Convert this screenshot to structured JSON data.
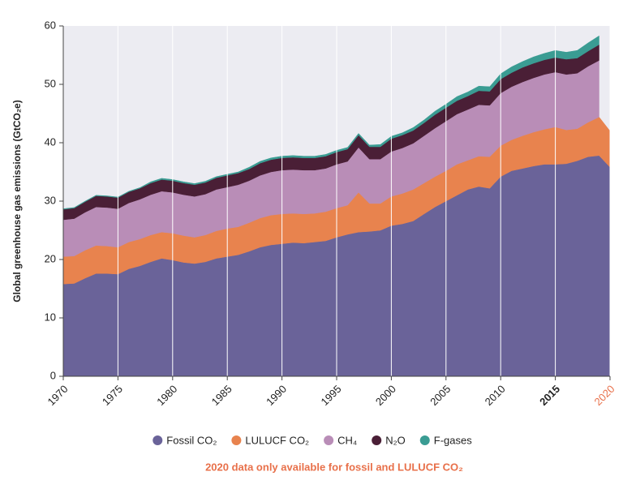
{
  "chart_data": {
    "type": "stacked_area",
    "y_label": "Global greenhouse gas emissions (GtCO₂e)",
    "annotation": "2020 data only available for fossil and LULUCF CO₂",
    "annotation_color": "#e8704a",
    "x": [
      1970,
      1971,
      1972,
      1973,
      1974,
      1975,
      1976,
      1977,
      1978,
      1979,
      1980,
      1981,
      1982,
      1983,
      1984,
      1985,
      1986,
      1987,
      1988,
      1989,
      1990,
      1991,
      1992,
      1993,
      1994,
      1995,
      1996,
      1997,
      1998,
      1999,
      2000,
      2001,
      2002,
      2003,
      2004,
      2005,
      2006,
      2007,
      2008,
      2009,
      2010,
      2011,
      2012,
      2013,
      2014,
      2015,
      2016,
      2017,
      2018,
      2019,
      2020
    ],
    "xlim": [
      1970,
      2020
    ],
    "xticks": [
      1970,
      1975,
      1980,
      1985,
      1990,
      1995,
      2000,
      2005,
      2010,
      2015,
      2020
    ],
    "ylim": [
      0,
      60
    ],
    "yticks": [
      0,
      10,
      20,
      30,
      40,
      50,
      60
    ],
    "series": [
      {
        "name": "Fossil CO₂",
        "color": "#6a6399",
        "values": [
          15.8,
          15.9,
          16.8,
          17.6,
          17.6,
          17.5,
          18.4,
          18.9,
          19.6,
          20.2,
          19.9,
          19.5,
          19.3,
          19.6,
          20.2,
          20.5,
          20.8,
          21.4,
          22.1,
          22.5,
          22.7,
          22.9,
          22.8,
          23.0,
          23.2,
          23.8,
          24.3,
          24.7,
          24.8,
          25.0,
          25.8,
          26.1,
          26.6,
          27.8,
          29.0,
          30.0,
          31.0,
          32.0,
          32.5,
          32.2,
          34.2,
          35.2,
          35.6,
          36.0,
          36.3,
          36.3,
          36.4,
          36.9,
          37.6,
          37.8,
          35.8
        ]
      },
      {
        "name": "LULUCF CO₂",
        "color": "#e8834e",
        "values": [
          4.7,
          4.7,
          4.8,
          4.8,
          4.7,
          4.6,
          4.6,
          4.6,
          4.6,
          4.5,
          4.6,
          4.6,
          4.5,
          4.6,
          4.7,
          4.8,
          4.8,
          4.9,
          5.0,
          5.1,
          5.1,
          5.0,
          5.0,
          4.9,
          5.0,
          5.0,
          5.0,
          6.8,
          4.8,
          4.6,
          5.0,
          5.2,
          5.4,
          5.3,
          5.2,
          5.2,
          5.3,
          5.0,
          5.2,
          5.4,
          5.3,
          5.3,
          5.6,
          5.8,
          6.0,
          6.4,
          5.8,
          5.5,
          5.9,
          6.6,
          6.2
        ]
      },
      {
        "name": "CH₄",
        "color": "#b98db7",
        "values": [
          6.3,
          6.4,
          6.5,
          6.6,
          6.6,
          6.6,
          6.7,
          6.8,
          6.9,
          7.0,
          7.0,
          7.0,
          7.0,
          7.0,
          7.1,
          7.1,
          7.2,
          7.2,
          7.3,
          7.4,
          7.5,
          7.5,
          7.5,
          7.4,
          7.4,
          7.5,
          7.5,
          7.7,
          7.6,
          7.6,
          7.7,
          7.8,
          7.9,
          8.1,
          8.3,
          8.5,
          8.6,
          8.7,
          8.8,
          8.8,
          9.0,
          9.1,
          9.2,
          9.3,
          9.4,
          9.4,
          9.5,
          9.5,
          9.6,
          9.7,
          null
        ]
      },
      {
        "name": "N₂O",
        "color": "#4a1f36",
        "values": [
          1.8,
          1.8,
          1.8,
          1.9,
          1.9,
          1.9,
          1.9,
          1.9,
          2.0,
          2.0,
          2.0,
          2.0,
          2.0,
          2.0,
          2.0,
          2.0,
          2.0,
          2.0,
          2.1,
          2.1,
          2.1,
          2.1,
          2.1,
          2.1,
          2.1,
          2.1,
          2.1,
          2.1,
          2.1,
          2.1,
          2.2,
          2.2,
          2.2,
          2.2,
          2.3,
          2.3,
          2.3,
          2.3,
          2.4,
          2.4,
          2.4,
          2.4,
          2.5,
          2.5,
          2.5,
          2.5,
          2.6,
          2.6,
          2.6,
          2.7,
          null
        ]
      },
      {
        "name": "F-gases",
        "color": "#3a9c93",
        "values": [
          0.1,
          0.1,
          0.1,
          0.1,
          0.1,
          0.1,
          0.1,
          0.1,
          0.2,
          0.2,
          0.2,
          0.2,
          0.2,
          0.2,
          0.2,
          0.2,
          0.2,
          0.3,
          0.3,
          0.3,
          0.3,
          0.3,
          0.3,
          0.3,
          0.3,
          0.3,
          0.3,
          0.3,
          0.3,
          0.4,
          0.4,
          0.4,
          0.5,
          0.5,
          0.6,
          0.6,
          0.7,
          0.7,
          0.8,
          0.8,
          0.9,
          1.0,
          1.0,
          1.1,
          1.1,
          1.2,
          1.2,
          1.3,
          1.4,
          1.5,
          null
        ]
      }
    ]
  }
}
